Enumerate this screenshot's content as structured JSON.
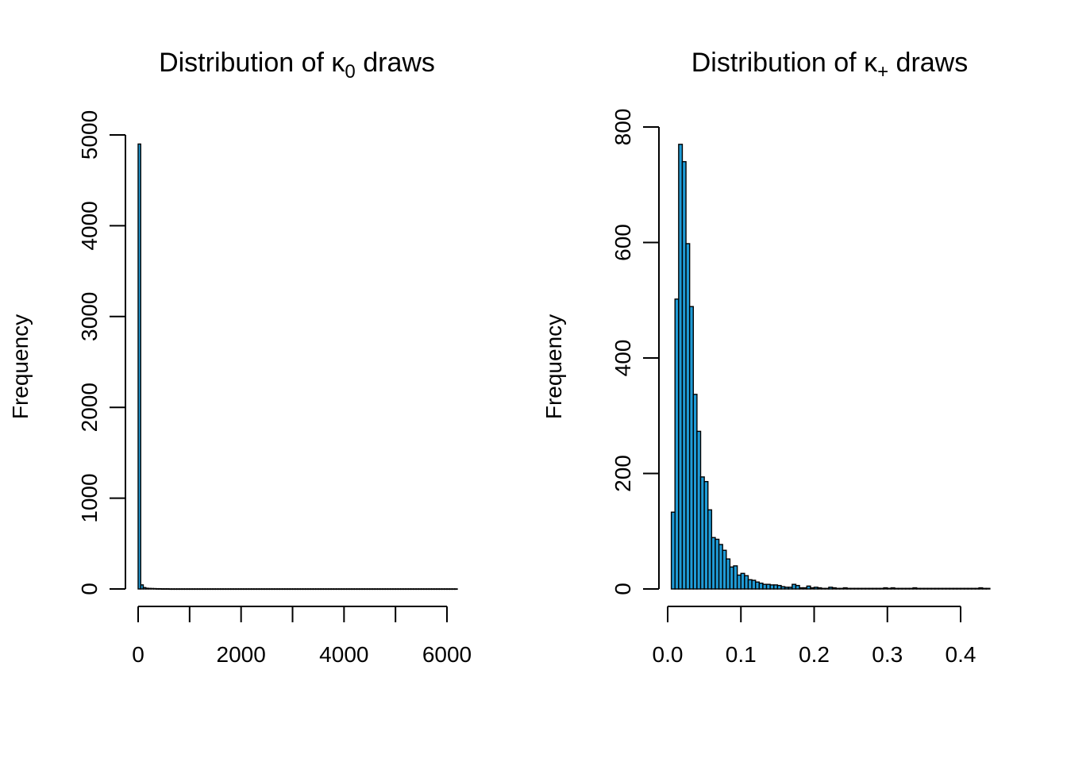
{
  "chart_data": [
    {
      "type": "bar",
      "title": {
        "text": "Distribution of κ",
        "sub": "0",
        "tail": " draws"
      },
      "xlabel": "",
      "ylabel": "Frequency",
      "bar_color": "#1f9bd6",
      "xlim": [
        0,
        6200
      ],
      "ylim": [
        0,
        5000
      ],
      "bin_width": 50,
      "bin_start": 0,
      "xticks": [
        0,
        1000,
        2000,
        3000,
        4000,
        5000,
        6000
      ],
      "xtick_labels": [
        "0",
        "2000",
        "4000",
        "6000"
      ],
      "xtick_label_values": [
        0,
        2000,
        4000,
        6000
      ],
      "yticks": [
        0,
        1000,
        2000,
        3000,
        4000,
        5000
      ],
      "ytick_labels": [
        "0",
        "1000",
        "2000",
        "3000",
        "4000",
        "5000"
      ],
      "values": [
        4900,
        45,
        15,
        8,
        6,
        5,
        4,
        3,
        3,
        2,
        2,
        2,
        1,
        1,
        1,
        1,
        1,
        1,
        1,
        1,
        1,
        1,
        1,
        1,
        1,
        1,
        1,
        1,
        1,
        1,
        1,
        1,
        1,
        1,
        1,
        1,
        1,
        1,
        1,
        1,
        1,
        1,
        1,
        1,
        1,
        1,
        1,
        1,
        1,
        1,
        1,
        1,
        1,
        1,
        1,
        1,
        1,
        1,
        1,
        1,
        1,
        1,
        1,
        1,
        1,
        1,
        1,
        1,
        1,
        1,
        1,
        1,
        1,
        1,
        1,
        1,
        1,
        1,
        1,
        1,
        1,
        1,
        1,
        1,
        1,
        1,
        1,
        1,
        1,
        1,
        1,
        1,
        1,
        1,
        1,
        1,
        1,
        1,
        1,
        1,
        1,
        1,
        1,
        1,
        1,
        1,
        1,
        1,
        1,
        1,
        1,
        1,
        1,
        1,
        1,
        1,
        1,
        1,
        1,
        1,
        1,
        1,
        1,
        1
      ]
    },
    {
      "type": "bar",
      "title": {
        "text": "Distribution of κ",
        "sub": "+",
        "tail": " draws"
      },
      "xlabel": "",
      "ylabel": "Frequency",
      "bar_color": "#1f9bd6",
      "xlim": [
        0,
        0.44
      ],
      "ylim": [
        0,
        800
      ],
      "bin_width": 0.005,
      "bin_start": 0.005,
      "xticks": [
        0.0,
        0.1,
        0.2,
        0.3,
        0.4
      ],
      "xtick_labels": [
        "0.0",
        "0.1",
        "0.2",
        "0.3",
        "0.4"
      ],
      "xtick_label_values": [
        0.0,
        0.1,
        0.2,
        0.3,
        0.4
      ],
      "yticks": [
        0,
        200,
        400,
        600,
        800
      ],
      "ytick_labels": [
        "0",
        "200",
        "400",
        "600",
        "800"
      ],
      "values": [
        133,
        502,
        770,
        740,
        598,
        489,
        337,
        273,
        194,
        186,
        137,
        89,
        86,
        77,
        67,
        52,
        38,
        40,
        24,
        27,
        23,
        16,
        15,
        12,
        10,
        8,
        8,
        7,
        7,
        6,
        4,
        3,
        3,
        8,
        6,
        2,
        2,
        5,
        2,
        3,
        2,
        1,
        1,
        3,
        2,
        1,
        1,
        2,
        1,
        1,
        1,
        1,
        1,
        1,
        1,
        1,
        1,
        1,
        2,
        1,
        2,
        1,
        1,
        1,
        1,
        1,
        2,
        1,
        1,
        1,
        1,
        1,
        1,
        1,
        1,
        1,
        1,
        1,
        1,
        1,
        1,
        1,
        1,
        1,
        2,
        1,
        1
      ]
    }
  ]
}
